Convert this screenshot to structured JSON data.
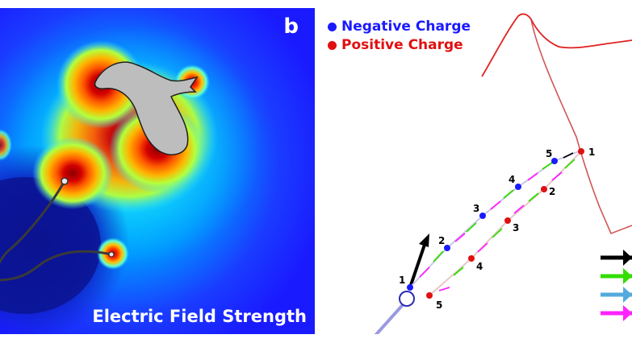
{
  "left_panel": {
    "panel_letter": "b",
    "caption": "Electric Field Strength"
  },
  "right_panel": {
    "legend": [
      {
        "label": "Negative Charge",
        "color": "#1a1aff"
      },
      {
        "label": "Positive Charge",
        "color": "#e01010"
      }
    ],
    "negative_charge_labels": [
      "1",
      "2",
      "3",
      "4",
      "5"
    ],
    "positive_charge_labels": [
      "1",
      "2",
      "3",
      "4",
      "5"
    ],
    "arrow_colors": [
      "#000000",
      "#33dd00",
      "#55aadd",
      "#ff22ff"
    ]
  }
}
